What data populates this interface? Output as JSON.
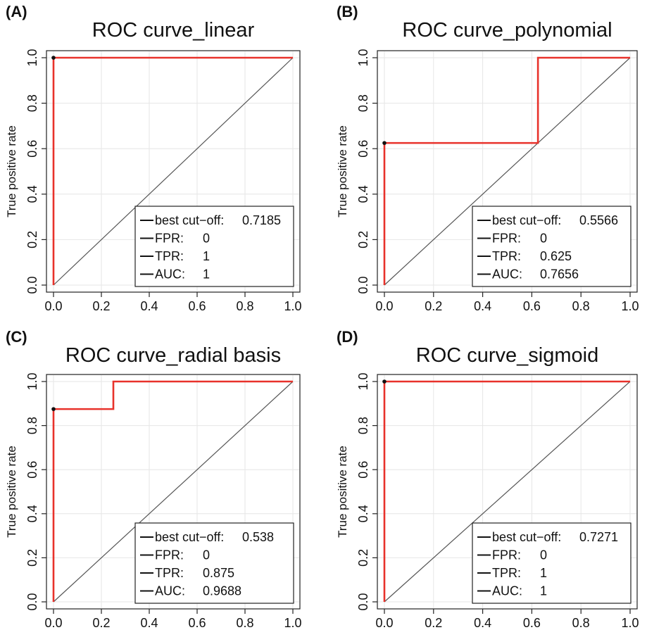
{
  "chart_data": [
    {
      "type": "line",
      "panel_label": "(A)",
      "title": "ROC curve_linear",
      "xlabel": "",
      "ylabel": "True positive rate",
      "xlim": [
        0,
        1
      ],
      "ylim": [
        0,
        1
      ],
      "grid": true,
      "xticks": [
        "0.0",
        "0.2",
        "0.4",
        "0.6",
        "0.8",
        "1.0"
      ],
      "yticks": [
        "0.0",
        "0.2",
        "0.4",
        "0.6",
        "0.8",
        "1.0"
      ],
      "series": [
        {
          "x": [
            0,
            0,
            1
          ],
          "y": [
            0,
            1,
            1
          ],
          "color": "#e8322b"
        },
        {
          "x": [
            0,
            1
          ],
          "y": [
            0,
            1
          ],
          "color": "#555555"
        }
      ],
      "best_point": {
        "x": 0,
        "y": 1
      },
      "legend_position": "bottom-right",
      "legend": [
        {
          "label": "best cut−off:",
          "value": "0.7185"
        },
        {
          "label": "FPR:",
          "value": "0"
        },
        {
          "label": "TPR:",
          "value": "1"
        },
        {
          "label": "AUC:",
          "value": "1"
        }
      ]
    },
    {
      "type": "line",
      "panel_label": "(B)",
      "title": "ROC curve_polynomial",
      "xlabel": "",
      "ylabel": "True positive rate",
      "xlim": [
        0,
        1
      ],
      "ylim": [
        0,
        1
      ],
      "grid": true,
      "xticks": [
        "0.0",
        "0.2",
        "0.4",
        "0.6",
        "0.8",
        "1.0"
      ],
      "yticks": [
        "0.0",
        "0.2",
        "0.4",
        "0.6",
        "0.8",
        "1.0"
      ],
      "series": [
        {
          "x": [
            0,
            0,
            0.625,
            0.625,
            1
          ],
          "y": [
            0,
            0.625,
            0.625,
            1,
            1
          ],
          "color": "#e8322b"
        },
        {
          "x": [
            0,
            1
          ],
          "y": [
            0,
            1
          ],
          "color": "#555555"
        }
      ],
      "best_point": {
        "x": 0,
        "y": 0.625
      },
      "legend_position": "bottom-right",
      "legend": [
        {
          "label": "best cut−off:",
          "value": "0.5566"
        },
        {
          "label": "FPR:",
          "value": "0"
        },
        {
          "label": "TPR:",
          "value": "0.625"
        },
        {
          "label": "AUC:",
          "value": "0.7656"
        }
      ]
    },
    {
      "type": "line",
      "panel_label": "(C)",
      "title": "ROC curve_radial basis",
      "xlabel": "",
      "ylabel": "True positive rate",
      "xlim": [
        0,
        1
      ],
      "ylim": [
        0,
        1
      ],
      "grid": true,
      "xticks": [
        "0.0",
        "0.2",
        "0.4",
        "0.6",
        "0.8",
        "1.0"
      ],
      "yticks": [
        "0.0",
        "0.2",
        "0.4",
        "0.6",
        "0.8",
        "1.0"
      ],
      "series": [
        {
          "x": [
            0,
            0,
            0.25,
            0.25,
            1
          ],
          "y": [
            0,
            0.875,
            0.875,
            1,
            1
          ],
          "color": "#e8322b"
        },
        {
          "x": [
            0,
            1
          ],
          "y": [
            0,
            1
          ],
          "color": "#555555"
        }
      ],
      "best_point": {
        "x": 0,
        "y": 0.875
      },
      "legend_position": "bottom-right",
      "legend": [
        {
          "label": "best cut−off:",
          "value": "0.538"
        },
        {
          "label": "FPR:",
          "value": "0"
        },
        {
          "label": "TPR:",
          "value": "0.875"
        },
        {
          "label": "AUC:",
          "value": "0.9688"
        }
      ]
    },
    {
      "type": "line",
      "panel_label": "(D)",
      "title": "ROC curve_sigmoid",
      "xlabel": "",
      "ylabel": "True positive rate",
      "xlim": [
        0,
        1
      ],
      "ylim": [
        0,
        1
      ],
      "grid": true,
      "xticks": [
        "0.0",
        "0.2",
        "0.4",
        "0.6",
        "0.8",
        "1.0"
      ],
      "yticks": [
        "0.0",
        "0.2",
        "0.4",
        "0.6",
        "0.8",
        "1.0"
      ],
      "series": [
        {
          "x": [
            0,
            0,
            1
          ],
          "y": [
            0,
            1,
            1
          ],
          "color": "#e8322b"
        },
        {
          "x": [
            0,
            1
          ],
          "y": [
            0,
            1
          ],
          "color": "#555555"
        }
      ],
      "best_point": {
        "x": 0,
        "y": 1
      },
      "legend_position": "bottom-right",
      "legend": [
        {
          "label": "best cut−off:",
          "value": "0.7271"
        },
        {
          "label": "FPR:",
          "value": "0"
        },
        {
          "label": "TPR:",
          "value": "1"
        },
        {
          "label": "AUC:",
          "value": "1"
        }
      ]
    }
  ]
}
